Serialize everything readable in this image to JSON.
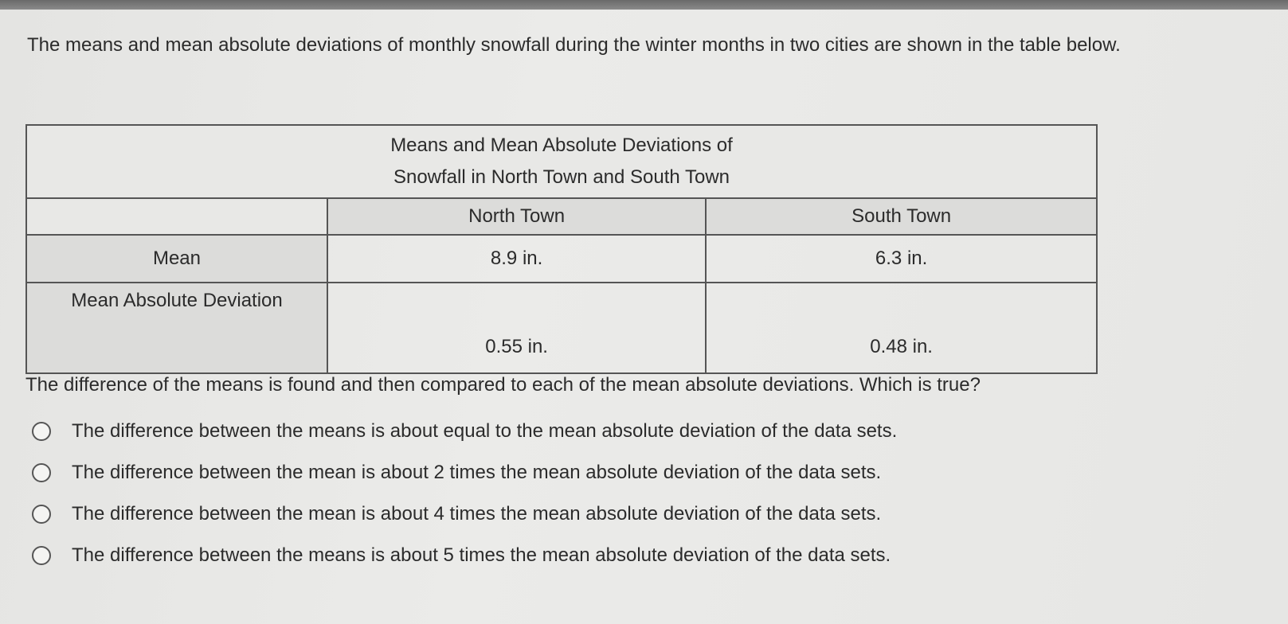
{
  "intro": "The means and mean absolute deviations of monthly snowfall during the winter months in two cities are shown in the table below.",
  "table": {
    "title_line1": "Means and Mean Absolute Deviations of",
    "title_line2": "Snowfall in North Town and South Town",
    "columns": [
      "",
      "North Town",
      "South Town"
    ],
    "rows": [
      {
        "label": "Mean",
        "north": "8.9 in.",
        "south": "6.3 in."
      },
      {
        "label": "Mean Absolute Deviation",
        "north": "0.55 in.",
        "south": "0.48 in."
      }
    ]
  },
  "question": "The difference of the means is found and then compared to each of the mean absolute deviations. Which is true?",
  "options": [
    "The difference between the means is about equal to the mean absolute deviation of the data sets.",
    "The difference between the mean is about 2 times the mean absolute deviation of the data sets.",
    "The difference between the mean is about 4 times the mean absolute deviation of the data sets.",
    "The difference between the means is about 5 times the mean absolute deviation of the data sets."
  ]
}
